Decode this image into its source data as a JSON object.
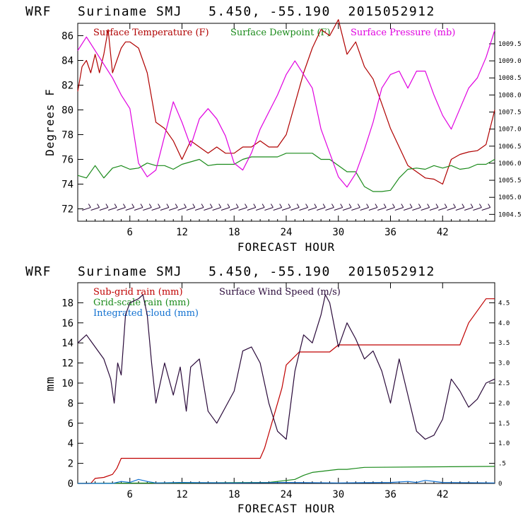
{
  "colors": {
    "temperature": "#b00000",
    "dewpoint": "#1a8a1a",
    "pressure": "#e000e0",
    "subgrid_rain": "#c00000",
    "grid_rain": "#1a8a1a",
    "cloud": "#1070d0",
    "wind": "#2a0a3a",
    "axis": "#000000"
  },
  "chart_data": [
    {
      "type": "line",
      "title": "WRF   Suriname SMJ   5.450, -55.190  2015052912",
      "xlabel": "FORECAST HOUR",
      "ylabel": "Degrees F",
      "xlim": [
        0,
        48
      ],
      "ylim": [
        71,
        87
      ],
      "y2lim": [
        1004.3,
        1010.1
      ],
      "xticks": [
        6,
        12,
        18,
        24,
        30,
        36,
        42
      ],
      "yticks": [
        72,
        74,
        76,
        78,
        80,
        82,
        84,
        86
      ],
      "y2ticks": [
        "1004.5",
        "1005.0",
        "1005.5",
        "1006.0",
        "1006.5",
        "1007.0",
        "1007.5",
        "1008.0",
        "1008.5",
        "1009.0",
        "1009.5"
      ],
      "series": [
        {
          "name": "Surface Temperature (F)",
          "axis": "left",
          "x": [
            0,
            0.5,
            1,
            1.5,
            2,
            2.5,
            3,
            3.5,
            4,
            4.5,
            5,
            5.5,
            6,
            7,
            8,
            9,
            10,
            11,
            12,
            13,
            14,
            15,
            16,
            17,
            18,
            19,
            20,
            21,
            22,
            23,
            24,
            25,
            26,
            27,
            28,
            29,
            30,
            31,
            32,
            33,
            34,
            35,
            36,
            37,
            38,
            39,
            40,
            41,
            42,
            43,
            44,
            45,
            46,
            47,
            48
          ],
          "values": [
            81.5,
            83.5,
            84,
            83,
            84.5,
            83,
            84.5,
            86.5,
            83,
            84,
            85,
            85.5,
            85.5,
            85,
            83,
            79,
            78.5,
            77.5,
            76,
            77.5,
            77,
            76.5,
            77,
            76.5,
            76.5,
            77,
            77,
            77.5,
            77,
            77,
            78,
            80.5,
            83,
            85,
            86.5,
            86,
            87.3,
            84.5,
            85.5,
            83.5,
            82.5,
            80.5,
            78.5,
            77,
            75.5,
            75,
            74.5,
            74.4,
            74,
            76,
            76.4,
            76.6,
            76.7,
            77.2,
            80
          ]
        },
        {
          "name": "Surface Dewpoint (F)",
          "axis": "left",
          "x": [
            0,
            1,
            2,
            3,
            4,
            5,
            6,
            7,
            8,
            9,
            10,
            11,
            12,
            13,
            14,
            15,
            16,
            17,
            18,
            19,
            20,
            21,
            22,
            23,
            24,
            25,
            26,
            27,
            28,
            29,
            30,
            31,
            32,
            33,
            34,
            35,
            36,
            37,
            38,
            39,
            40,
            41,
            42,
            43,
            44,
            45,
            46,
            47,
            48
          ],
          "values": [
            74.7,
            74.5,
            75.5,
            74.5,
            75.3,
            75.5,
            75.2,
            75.3,
            75.7,
            75.5,
            75.5,
            75.2,
            75.6,
            75.8,
            76,
            75.5,
            75.6,
            75.6,
            75.6,
            76,
            76.2,
            76.2,
            76.2,
            76.2,
            76.5,
            76.5,
            76.5,
            76.5,
            76,
            76,
            75.5,
            75,
            75,
            73.8,
            73.4,
            73.4,
            73.5,
            74.5,
            75.2,
            75.3,
            75.2,
            75.5,
            75.3,
            75.5,
            75.2,
            75.3,
            75.6,
            75.6,
            76
          ]
        },
        {
          "name": "Surface Pressure (mb)",
          "axis": "right",
          "x": [
            0,
            1,
            2,
            3,
            4,
            5,
            6,
            7,
            8,
            9,
            10,
            11,
            12,
            13,
            14,
            15,
            16,
            17,
            18,
            19,
            20,
            21,
            22,
            23,
            24,
            25,
            26,
            27,
            28,
            29,
            30,
            31,
            32,
            33,
            34,
            35,
            36,
            37,
            38,
            39,
            40,
            41,
            42,
            43,
            44,
            45,
            46,
            47,
            48
          ],
          "values": [
            1009.3,
            1009.7,
            1009.3,
            1008.9,
            1008.5,
            1008.0,
            1007.6,
            1006.0,
            1005.6,
            1005.8,
            1006.8,
            1007.8,
            1007.2,
            1006.5,
            1007.3,
            1007.6,
            1007.3,
            1006.8,
            1006.0,
            1005.8,
            1006.3,
            1007.0,
            1007.5,
            1008.0,
            1008.6,
            1009.0,
            1008.6,
            1008.2,
            1007.0,
            1006.3,
            1005.6,
            1005.3,
            1005.7,
            1006.4,
            1007.2,
            1008.2,
            1008.6,
            1008.7,
            1008.2,
            1008.7,
            1008.7,
            1008.0,
            1007.4,
            1007.0,
            1007.6,
            1008.2,
            1008.5,
            1009.1,
            1009.9
          ]
        }
      ],
      "wind_barbs": {
        "level": 72,
        "x": [
          1,
          2,
          3,
          4,
          5,
          6,
          7,
          8,
          9,
          10,
          11,
          12,
          13,
          14,
          15,
          16,
          17,
          18,
          19,
          20,
          21,
          22,
          23,
          24,
          25,
          26,
          27,
          28,
          29,
          30,
          31,
          32,
          33,
          34,
          35,
          36,
          37,
          38,
          39,
          40,
          41,
          42,
          43,
          44,
          45,
          46,
          47
        ]
      }
    },
    {
      "type": "line",
      "title": "WRF   Suriname SMJ   5.450, -55.190  2015052912",
      "xlabel": "FORECAST HOUR",
      "ylabel": "mm",
      "xlim": [
        0,
        48
      ],
      "ylim": [
        0,
        20
      ],
      "y2lim": [
        0,
        5
      ],
      "xticks": [
        6,
        12,
        18,
        24,
        30,
        36,
        42
      ],
      "yticks": [
        0,
        2,
        4,
        6,
        8,
        10,
        12,
        14,
        16,
        18
      ],
      "y2ticks": [
        "0",
        ".5",
        "1.0",
        "1.5",
        "2.0",
        "2.5",
        "3.0",
        "3.5",
        "4.0",
        "4.5"
      ],
      "series": [
        {
          "name": "Sub-grid rain (mm)",
          "axis": "left",
          "x": [
            0,
            1.5,
            2,
            3,
            4,
            4.5,
            5,
            21,
            21.5,
            22.5,
            23.5,
            24,
            25.5,
            29,
            30,
            44,
            45,
            47,
            48
          ],
          "values": [
            0,
            0,
            0.5,
            0.6,
            0.9,
            1.5,
            2.5,
            2.5,
            3.5,
            6.5,
            9.5,
            11.8,
            13.1,
            13.1,
            13.8,
            13.8,
            16,
            18.4,
            18.4
          ]
        },
        {
          "name": "Grid-scale rain (mm)",
          "axis": "left",
          "x": [
            0,
            22,
            23,
            25,
            26,
            27,
            28,
            29,
            30,
            31,
            32,
            33,
            48
          ],
          "values": [
            0,
            0.1,
            0.2,
            0.4,
            0.8,
            1.1,
            1.2,
            1.3,
            1.4,
            1.4,
            1.5,
            1.6,
            1.7
          ]
        },
        {
          "name": "Integrated cloud (mm)",
          "axis": "left",
          "x": [
            0,
            4,
            5,
            6,
            7,
            8,
            9,
            12,
            18,
            24,
            30,
            36,
            38,
            39,
            40,
            42,
            48
          ],
          "values": [
            0,
            0,
            0.2,
            0.1,
            0.4,
            0.2,
            0.05,
            0.1,
            0.05,
            0.1,
            0.05,
            0.1,
            0.2,
            0.1,
            0.3,
            0.1,
            0.05
          ]
        },
        {
          "name": "Surface Wind Speed (m/s)",
          "axis": "right",
          "x": [
            0,
            1,
            2,
            3,
            3.8,
            4.2,
            4.6,
            5,
            5.5,
            6,
            7,
            7.5,
            8,
            8.5,
            9,
            10,
            11,
            11.8,
            12.5,
            13,
            14,
            15,
            16,
            17,
            18,
            19,
            20,
            21,
            22,
            23,
            24,
            25,
            26,
            27,
            28,
            28.5,
            29,
            30,
            31,
            32,
            33,
            34,
            35,
            36,
            37,
            38,
            39,
            40,
            41,
            42,
            43,
            44,
            45,
            46,
            47,
            48
          ],
          "values": [
            3.5,
            3.7,
            3.4,
            3.1,
            2.6,
            2.0,
            3.0,
            2.7,
            4.2,
            4.5,
            4.6,
            4.7,
            4.2,
            3.0,
            2.0,
            3.0,
            2.2,
            2.9,
            1.8,
            2.9,
            3.1,
            1.8,
            1.5,
            1.9,
            2.3,
            3.3,
            3.4,
            3.0,
            2.0,
            1.3,
            1.1,
            2.8,
            3.7,
            3.5,
            4.2,
            4.7,
            4.5,
            3.4,
            4.0,
            3.6,
            3.1,
            3.3,
            2.8,
            2.0,
            3.1,
            2.2,
            1.3,
            1.1,
            1.2,
            1.6,
            2.6,
            2.3,
            1.9,
            2.1,
            2.5,
            2.6
          ]
        }
      ]
    }
  ]
}
